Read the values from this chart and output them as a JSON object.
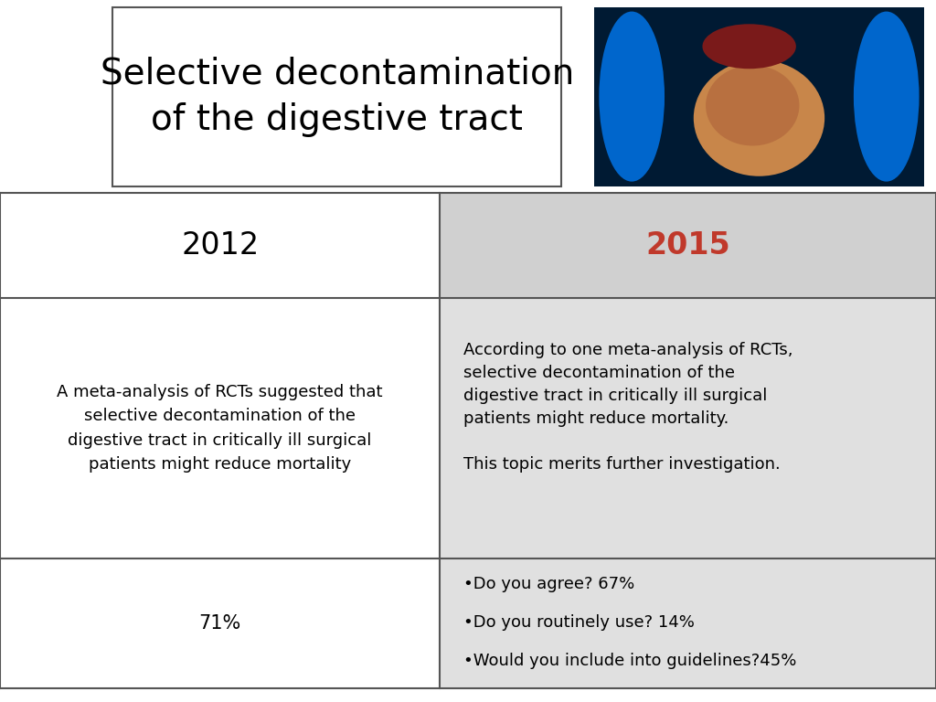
{
  "title_line1": "Selective decontamination",
  "title_line2": "of the digestive tract",
  "title_fontsize": 28,
  "title_color": "#000000",
  "col1_header": "2012",
  "col2_header": "2015",
  "col1_header_color": "#000000",
  "col2_header_color": "#c0392b",
  "header_fontsize": 24,
  "col1_body": "A meta-analysis of RCTs suggested that\nselective decontamination of the\ndigestive tract in critically ill surgical\npatients might reduce mortality",
  "col2_body_para1": "According to one meta-analysis of RCTs,\nselective decontamination of the\ndigestive tract in critically ill surgical\npatients might reduce mortality.",
  "col2_body_para2": "This topic merits further investigation.",
  "col1_footer": "71%",
  "col2_footer_line1": "•Do you agree? 67%",
  "col2_footer_line2": "•Do you routinely use? 14%",
  "col2_footer_line3": "•Would you include into guidelines?45%",
  "body_fontsize": 13,
  "footer_fontsize": 13,
  "bg_color": "#ffffff",
  "col2_header_bg": "#d0d0d0",
  "col2_body_bg": "#e0e0e0",
  "col2_footer_bg": "#e0e0e0",
  "col1_header_bg": "#ffffff",
  "col1_body_bg": "#ffffff",
  "col1_footer_bg": "#ffffff",
  "grid_color": "#555555",
  "title_box_border": "#555555",
  "img_bg_color": "#001a33",
  "img_blue_left": "#0055aa",
  "img_blue_right": "#0055aa",
  "img_intestine_color": "#c8864a",
  "img_liver_color": "#7a1a1a"
}
